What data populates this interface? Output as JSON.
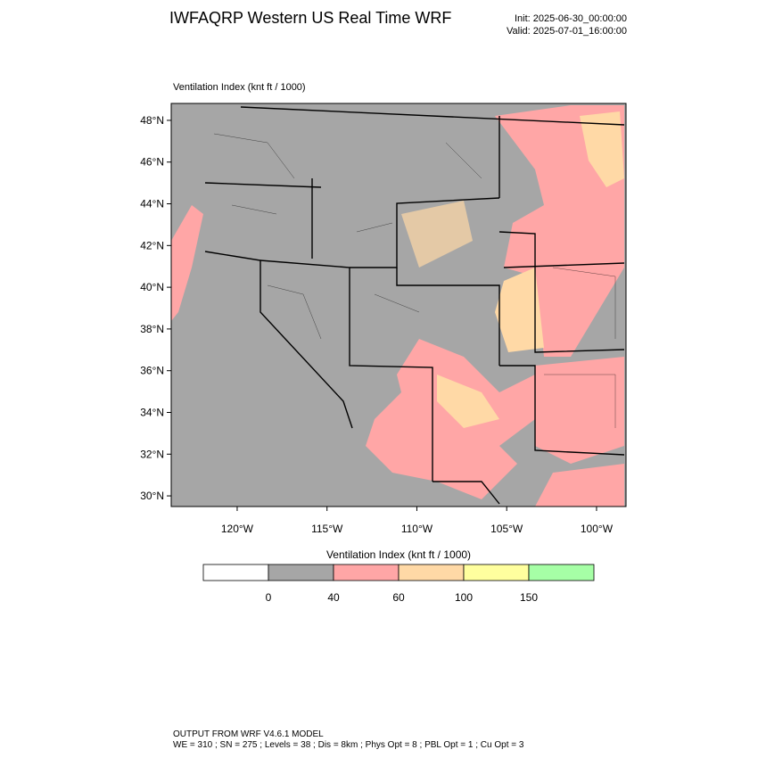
{
  "header": {
    "title": "IWFAQRP Western US Real Time WRF",
    "init": "Init: 2025-06-30_00:00:00",
    "valid": "Valid: 2025-07-01_16:00:00"
  },
  "map": {
    "label": "Ventilation Index   (knt ft / 1000)",
    "lonlim": [
      -123.67,
      -98.36
    ],
    "latlim": [
      29.49,
      48.81
    ],
    "lat_ticks": [
      {
        "value": 48,
        "label": "48°N"
      },
      {
        "value": 46,
        "label": "46°N"
      },
      {
        "value": 44,
        "label": "44°N"
      },
      {
        "value": 42,
        "label": "42°N"
      },
      {
        "value": 40,
        "label": "40°N"
      },
      {
        "value": 38,
        "label": "38°N"
      },
      {
        "value": 36,
        "label": "36°N"
      },
      {
        "value": 34,
        "label": "34°N"
      },
      {
        "value": 32,
        "label": "32°N"
      },
      {
        "value": 30,
        "label": "30°N"
      }
    ],
    "lon_ticks": [
      {
        "value": -120,
        "label": "120°W"
      },
      {
        "value": -115,
        "label": "115°W"
      },
      {
        "value": -110,
        "label": "110°W"
      },
      {
        "value": -105,
        "label": "105°W"
      },
      {
        "value": -100,
        "label": "100°W"
      }
    ]
  },
  "colorbar": {
    "title": "Ventilation Index   (knt ft / 1000)",
    "colors": [
      "#ffffff",
      "#a6a6a6",
      "#ffa6a6",
      "#ffd9a6",
      "#ffff9e",
      "#a6ffa6"
    ],
    "labels": [
      "0",
      "40",
      "60",
      "100",
      "150"
    ]
  },
  "footer": {
    "line1": "OUTPUT FROM WRF V4.6.1 MODEL",
    "line2": "WE = 310 ; SN = 275 ; Levels = 38 ; Dis = 8km ; Phys Opt = 8 ; PBL Opt = 1 ; Cu Opt = 3"
  }
}
